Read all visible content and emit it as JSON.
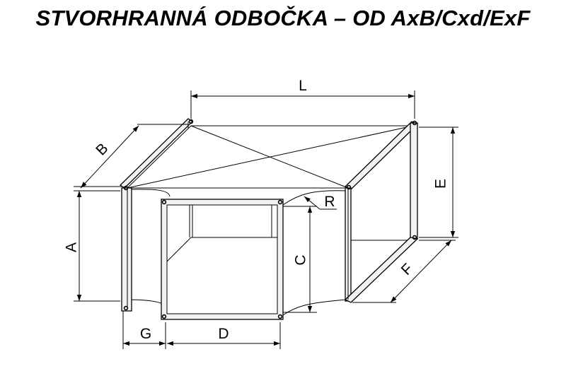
{
  "title": "STVORHRANNÁ ODBOČKA – OD AxB/Cxd/ExF",
  "dimensions": {
    "L": "L",
    "B": "B",
    "A": "A",
    "E": "E",
    "R": "R",
    "C": "C",
    "F": "F",
    "G": "G",
    "D": "D"
  }
}
